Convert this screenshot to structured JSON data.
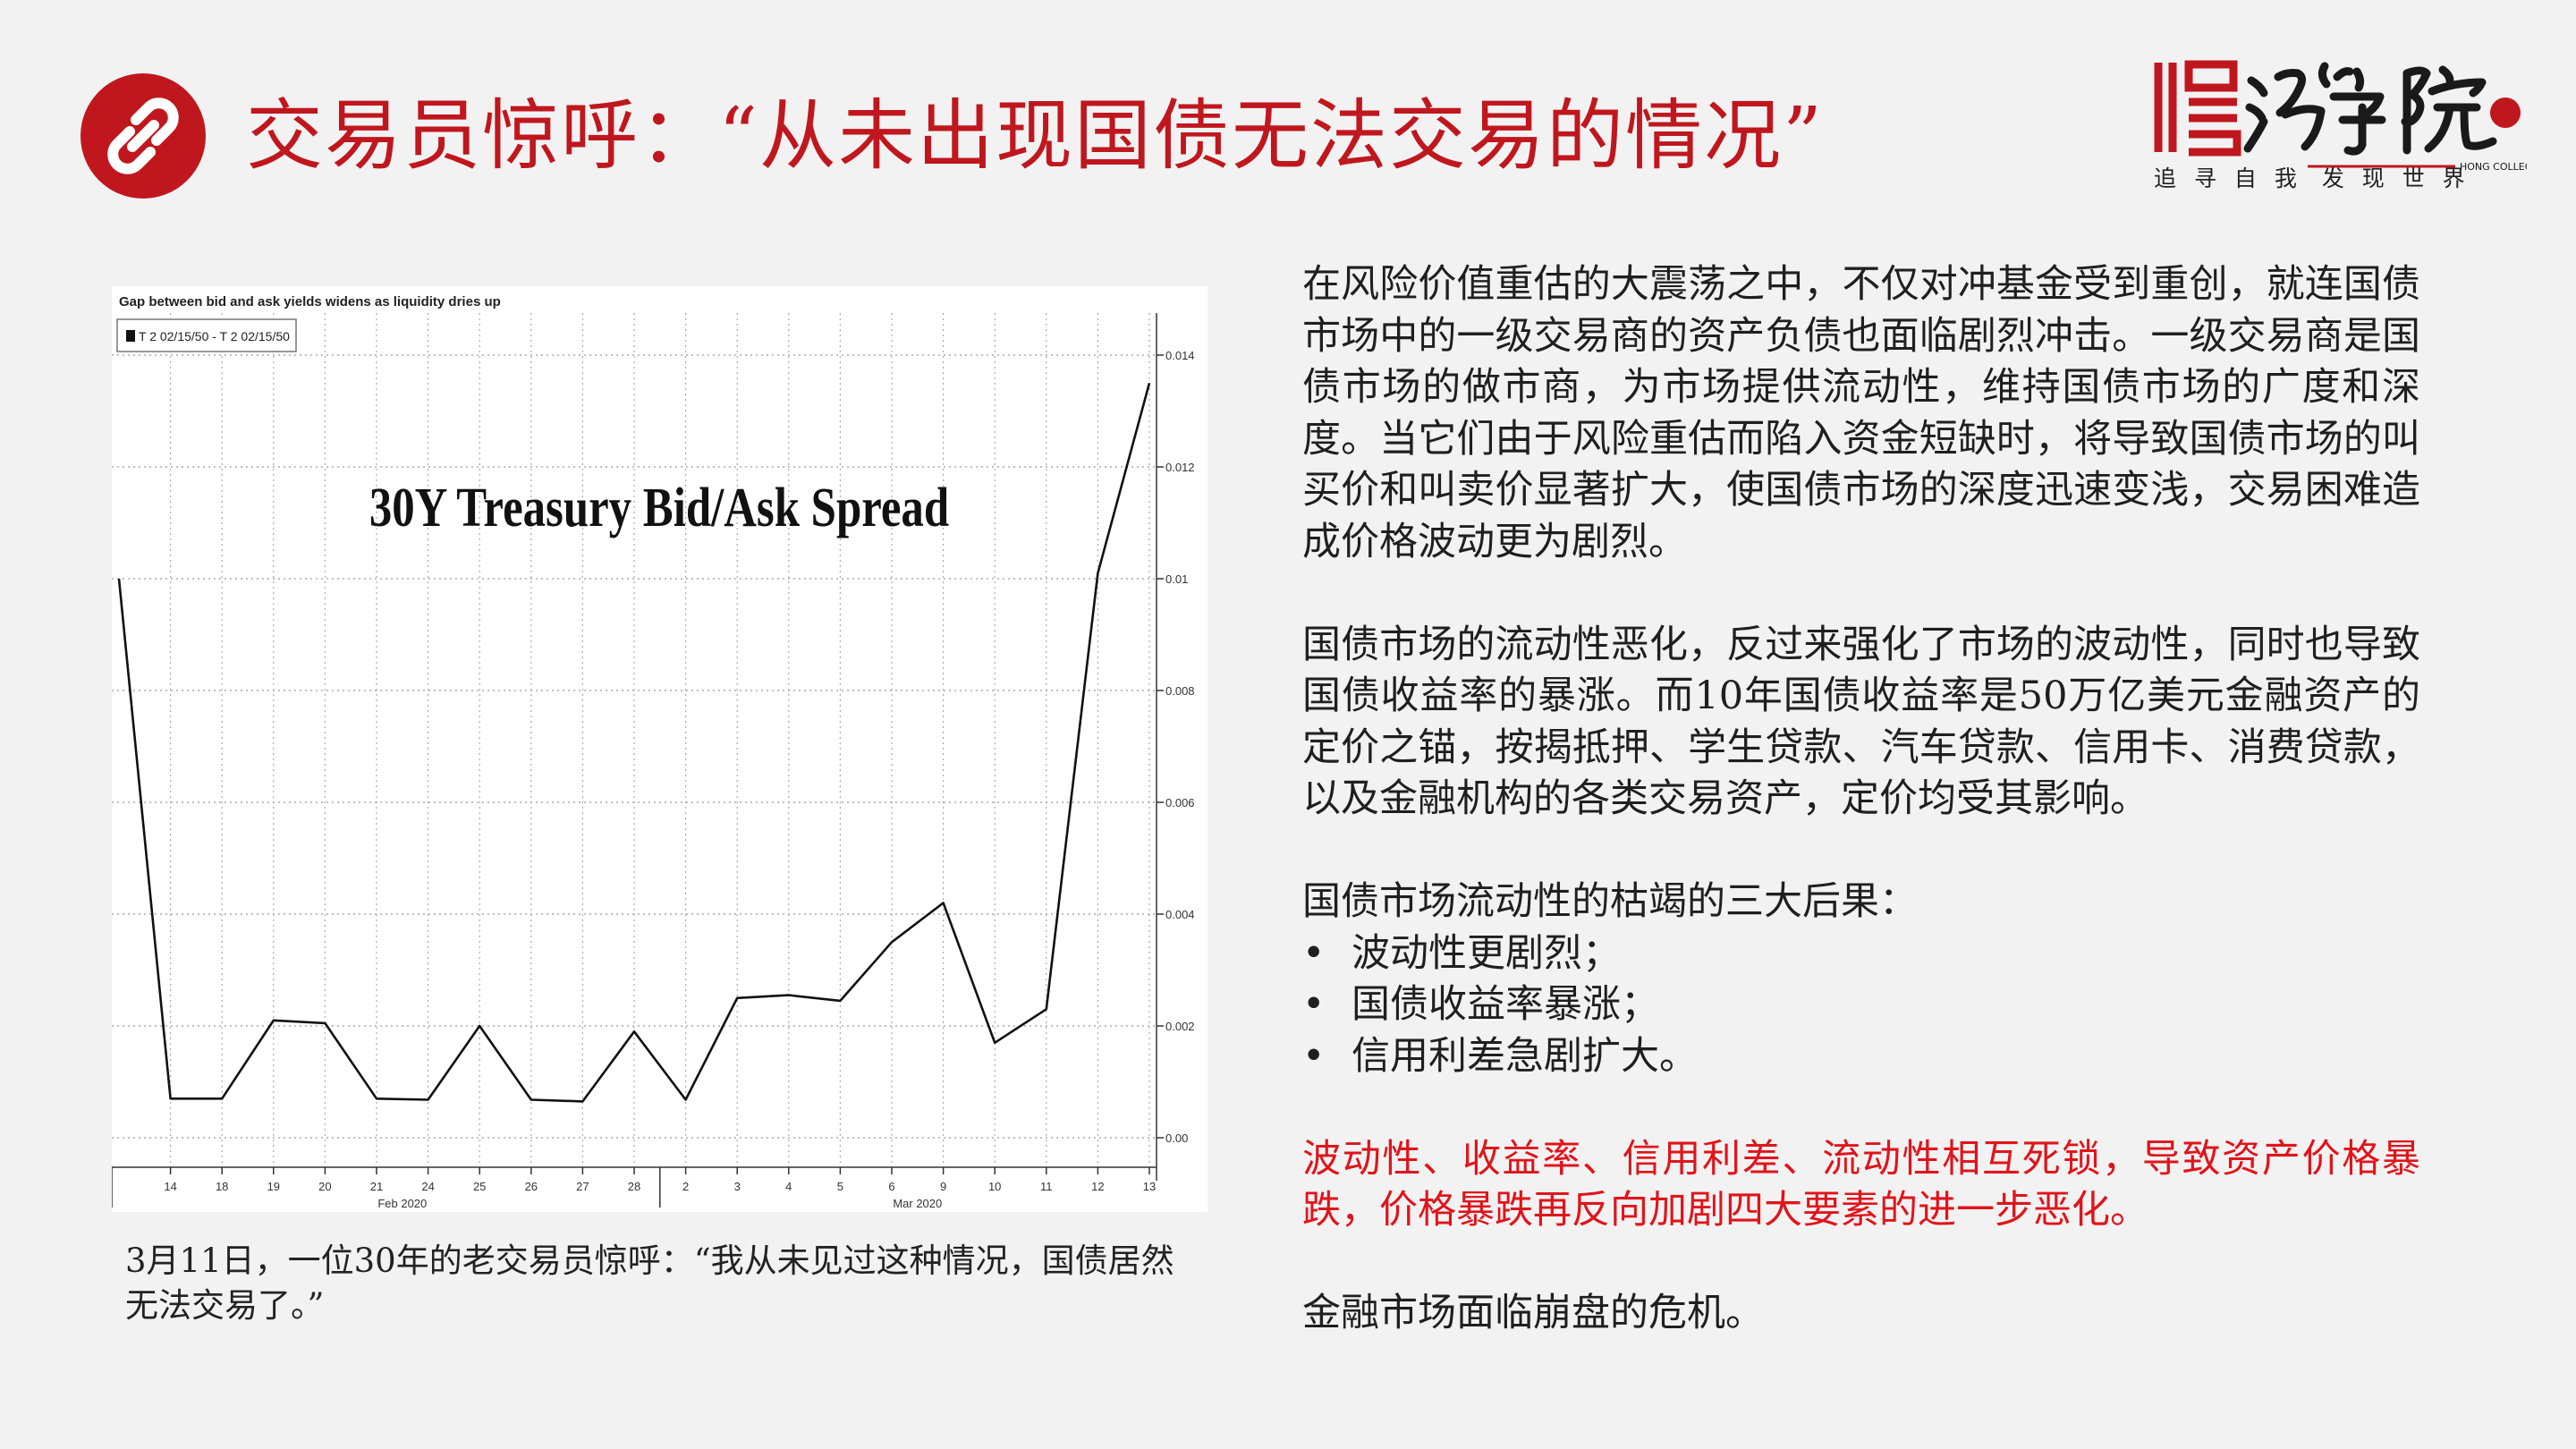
{
  "header": {
    "title": "交易员惊呼：“从未出现国债无法交易的情况”",
    "icon": "link-icon",
    "accent_color": "#c0171e"
  },
  "logo": {
    "seal_text": "鸿学院",
    "english": "HONG COLLEGE",
    "tagline_left": "追 寻 自 我",
    "tagline_right": "发 现 世 界"
  },
  "chart_data": {
    "type": "line",
    "header_text": "Gap between bid and ask yields widens as liquidity dries up",
    "legend": [
      "T 2 02/15/50 - T 2 02/15/50"
    ],
    "title": "30Y Treasury Bid/Ask Spread",
    "x_tick_labels": [
      "14",
      "18",
      "19",
      "20",
      "21",
      "24",
      "25",
      "26",
      "27",
      "28",
      "2",
      "3",
      "4",
      "5",
      "6",
      "9",
      "10",
      "11",
      "12",
      "13"
    ],
    "x_month_labels": [
      "Feb 2020",
      "Mar 2020"
    ],
    "y_tick_labels": [
      "0.014",
      "0.012",
      "0.01",
      "0.008",
      "0.006",
      "0.004",
      "0.002",
      "0.00"
    ],
    "ylim": [
      0,
      0.014
    ],
    "series": [
      {
        "name": "T 2 02/15/50 - T 2 02/15/50",
        "values": [
          0.01,
          0.0007,
          0.0007,
          0.0021,
          0.00205,
          0.0007,
          0.00068,
          0.002,
          0.00068,
          0.00065,
          0.0019,
          0.00068,
          0.0025,
          0.00255,
          0.00245,
          0.0035,
          0.0042,
          0.0017,
          0.0023,
          0.0101,
          0.0135
        ]
      }
    ]
  },
  "caption": "3月11日，一位30年的老交易员惊呼：“我从未见过这种情况，国债居然无法交易了。”",
  "body": {
    "para1": "在风险价值重估的大震荡之中，不仅对冲基金受到重创，就连国债市场中的一级交易商的资产负债也面临剧烈冲击。一级交易商是国债市场的做市商，为市场提供流动性，维持国债市场的广度和深度。当它们由于风险重估而陷入资金短缺时，将导致国债市场的叫买价和叫卖价显著扩大，使国债市场的深度迅速变浅，交易困难造成价格波动更为剧烈。",
    "para2": "国债市场的流动性恶化，反过来强化了市场的波动性，同时也导致国债收益率的暴涨。而10年国债收益率是50万亿美元金融资产的定价之锚，按揭抵押、学生贷款、汽车贷款、信用卡、消费贷款，以及金融机构的各类交易资产，定价均受其影响。",
    "list_heading": "国债市场流动性的枯竭的三大后果：",
    "bullets": [
      "波动性更剧烈；",
      "国债收益率暴涨；",
      "信用利差急剧扩大。"
    ],
    "red_para": "波动性、收益率、信用利差、流动性相互死锁，导致资产价格暴跌，价格暴跌再反向加剧四大要素的进一步恶化。",
    "red_color": "#e0141b",
    "closing": "金融市场面临崩盘的危机。"
  }
}
